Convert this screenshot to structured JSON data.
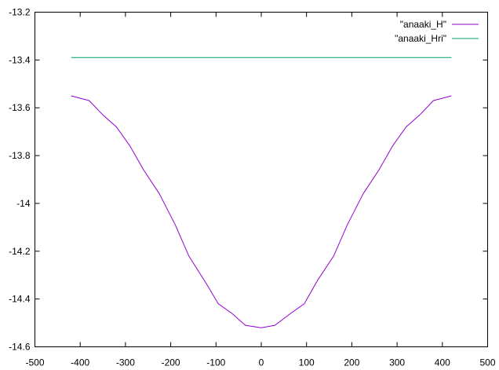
{
  "chart_data": {
    "type": "line",
    "title": "",
    "xlabel": "",
    "ylabel": "",
    "xlim": [
      -500,
      500
    ],
    "ylim": [
      -14.6,
      -13.2
    ],
    "x_ticks": [
      -500,
      -400,
      -300,
      -200,
      -100,
      0,
      100,
      200,
      300,
      400,
      500
    ],
    "y_ticks": [
      -13.2,
      -13.4,
      -13.6,
      -13.8,
      -14,
      -14.2,
      -14.4,
      -14.6
    ],
    "grid": false,
    "legend_position": "top-right",
    "series": [
      {
        "name": "\"anaaki_H\"",
        "color": "#9400d3",
        "x": [
          -420,
          -380,
          -350,
          -320,
          -290,
          -260,
          -225,
          -190,
          -160,
          -120,
          -95,
          -65,
          -35,
          0,
          30,
          65,
          95,
          125,
          160,
          190,
          225,
          260,
          290,
          320,
          350,
          380,
          420
        ],
        "y": [
          -13.55,
          -13.57,
          -13.63,
          -13.68,
          -13.76,
          -13.86,
          -13.96,
          -14.09,
          -14.22,
          -14.34,
          -14.42,
          -14.46,
          -14.51,
          -14.52,
          -14.51,
          -14.46,
          -14.42,
          -14.32,
          -14.22,
          -14.09,
          -13.96,
          -13.86,
          -13.76,
          -13.68,
          -13.63,
          -13.57,
          -13.55
        ]
      },
      {
        "name": "\"anaaki_Hri\"",
        "color": "#009e73",
        "x": [
          -420,
          420
        ],
        "y": [
          -13.39,
          -13.39
        ]
      }
    ]
  }
}
